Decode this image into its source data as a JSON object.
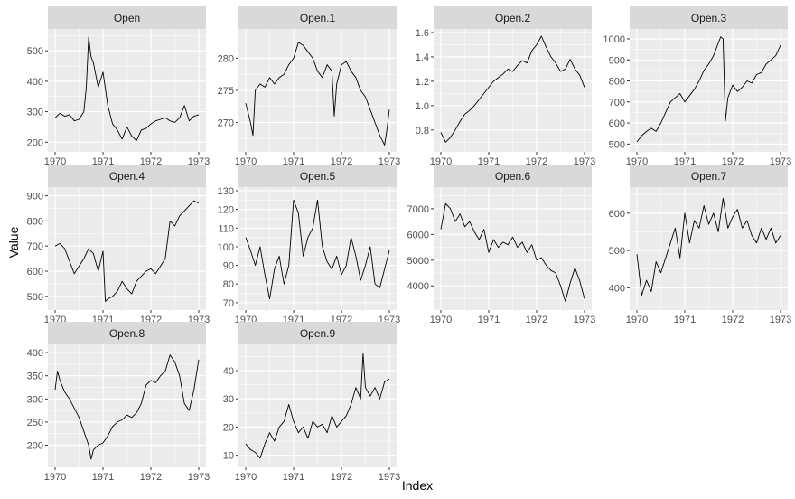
{
  "chart_data": {
    "type": "line",
    "layout": "facet-grid",
    "xlabel": "Index",
    "ylabel": "Value",
    "x_range": [
      1970,
      1973
    ],
    "x_ticks": [
      1970,
      1971,
      1972,
      1973
    ],
    "grid": true,
    "line_color": "#000000",
    "panel_background": "#ebebeb",
    "strip_background": "#d9d9d9",
    "panels": [
      {
        "title": "Open",
        "ylim": [
          180,
          560
        ],
        "y_ticks": [
          200,
          300,
          400,
          500
        ],
        "x": [
          1970.0,
          1970.1,
          1970.2,
          1970.3,
          1970.4,
          1970.5,
          1970.6,
          1970.65,
          1970.7,
          1970.75,
          1970.8,
          1970.9,
          1971.0,
          1971.1,
          1971.2,
          1971.3,
          1971.4,
          1971.5,
          1971.6,
          1971.7,
          1971.8,
          1971.9,
          1972.0,
          1972.1,
          1972.2,
          1972.3,
          1972.4,
          1972.5,
          1972.6,
          1972.7,
          1972.8,
          1972.9,
          1973.0
        ],
        "y": [
          280,
          295,
          285,
          290,
          270,
          275,
          300,
          380,
          545,
          480,
          460,
          380,
          430,
          320,
          260,
          240,
          210,
          250,
          220,
          205,
          240,
          245,
          260,
          270,
          275,
          280,
          270,
          265,
          280,
          320,
          270,
          285,
          290
        ]
      },
      {
        "title": "Open.1",
        "ylim": [
          266,
          284
        ],
        "y_ticks": [
          270,
          275,
          280
        ],
        "x": [
          1970.0,
          1970.1,
          1970.15,
          1970.2,
          1970.3,
          1970.4,
          1970.5,
          1970.6,
          1970.7,
          1970.8,
          1970.9,
          1971.0,
          1971.1,
          1971.2,
          1971.3,
          1971.4,
          1971.5,
          1971.6,
          1971.7,
          1971.8,
          1971.85,
          1971.9,
          1972.0,
          1972.1,
          1972.2,
          1972.3,
          1972.4,
          1972.5,
          1972.6,
          1972.7,
          1972.8,
          1972.9,
          1972.95,
          1973.0
        ],
        "y": [
          273,
          270,
          268,
          275,
          276,
          275.5,
          277,
          276,
          277,
          277.5,
          279,
          280,
          282.5,
          282,
          281,
          280,
          278,
          277,
          279,
          278,
          271,
          276,
          279,
          279.5,
          278,
          277,
          275,
          274,
          272,
          270,
          268,
          266.5,
          269,
          272
        ]
      },
      {
        "title": "Open.2",
        "ylim": [
          0.65,
          1.6
        ],
        "y_ticks": [
          0.8,
          1.0,
          1.2,
          1.4,
          1.6
        ],
        "y_tick_labels": [
          "0.8",
          "1.0",
          "1.2",
          "1.4",
          "1.6"
        ],
        "x": [
          1970.0,
          1970.1,
          1970.2,
          1970.3,
          1970.4,
          1970.5,
          1970.6,
          1970.7,
          1970.8,
          1970.9,
          1971.0,
          1971.1,
          1971.2,
          1971.3,
          1971.4,
          1971.5,
          1971.6,
          1971.7,
          1971.8,
          1971.9,
          1972.0,
          1972.1,
          1972.2,
          1972.3,
          1972.4,
          1972.5,
          1972.6,
          1972.7,
          1972.8,
          1972.9,
          1973.0
        ],
        "y": [
          0.78,
          0.7,
          0.74,
          0.8,
          0.87,
          0.93,
          0.96,
          1.0,
          1.05,
          1.1,
          1.15,
          1.2,
          1.23,
          1.26,
          1.3,
          1.28,
          1.33,
          1.37,
          1.35,
          1.45,
          1.5,
          1.57,
          1.48,
          1.4,
          1.35,
          1.28,
          1.3,
          1.38,
          1.3,
          1.25,
          1.15
        ]
      },
      {
        "title": "Open.3",
        "ylim": [
          480,
          1030
        ],
        "y_ticks": [
          500,
          600,
          700,
          800,
          900,
          1000
        ],
        "x": [
          1970.0,
          1970.1,
          1970.2,
          1970.3,
          1970.4,
          1970.5,
          1970.6,
          1970.7,
          1970.8,
          1970.9,
          1971.0,
          1971.1,
          1971.2,
          1971.3,
          1971.4,
          1971.5,
          1971.6,
          1971.7,
          1971.75,
          1971.8,
          1971.85,
          1971.9,
          1972.0,
          1972.1,
          1972.2,
          1972.3,
          1972.4,
          1972.5,
          1972.6,
          1972.7,
          1972.8,
          1972.9,
          1973.0
        ],
        "y": [
          510,
          540,
          560,
          575,
          560,
          600,
          650,
          700,
          720,
          740,
          700,
          730,
          760,
          800,
          850,
          880,
          920,
          980,
          1010,
          1000,
          610,
          720,
          780,
          750,
          770,
          800,
          790,
          830,
          840,
          880,
          900,
          920,
          970
        ]
      },
      {
        "title": "Open.4",
        "ylim": [
          460,
          920
        ],
        "y_ticks": [
          500,
          600,
          700,
          800,
          900
        ],
        "x": [
          1970.0,
          1970.1,
          1970.2,
          1970.3,
          1970.4,
          1970.5,
          1970.6,
          1970.7,
          1970.8,
          1970.9,
          1971.0,
          1971.05,
          1971.1,
          1971.2,
          1971.3,
          1971.4,
          1971.5,
          1971.6,
          1971.7,
          1971.8,
          1971.9,
          1972.0,
          1972.1,
          1972.2,
          1972.3,
          1972.4,
          1972.5,
          1972.6,
          1972.7,
          1972.8,
          1972.9,
          1973.0
        ],
        "y": [
          700,
          710,
          690,
          640,
          590,
          620,
          650,
          690,
          670,
          600,
          680,
          480,
          490,
          500,
          520,
          560,
          530,
          510,
          560,
          580,
          600,
          610,
          590,
          620,
          650,
          800,
          780,
          820,
          840,
          860,
          880,
          870
        ]
      },
      {
        "title": "Open.5",
        "ylim": [
          68,
          130
        ],
        "y_ticks": [
          70,
          80,
          90,
          100,
          110,
          120,
          130
        ],
        "x": [
          1970.0,
          1970.1,
          1970.2,
          1970.3,
          1970.4,
          1970.5,
          1970.6,
          1970.7,
          1970.8,
          1970.9,
          1971.0,
          1971.1,
          1971.2,
          1971.3,
          1971.4,
          1971.5,
          1971.6,
          1971.7,
          1971.8,
          1971.9,
          1972.0,
          1972.1,
          1972.2,
          1972.3,
          1972.4,
          1972.5,
          1972.6,
          1972.7,
          1972.8,
          1972.9,
          1973.0
        ],
        "y": [
          105,
          98,
          90,
          100,
          85,
          72,
          88,
          95,
          80,
          90,
          125,
          118,
          95,
          105,
          110,
          125,
          100,
          92,
          88,
          95,
          85,
          90,
          105,
          95,
          82,
          90,
          100,
          80,
          78,
          88,
          98
        ]
      },
      {
        "title": "Open.6",
        "ylim": [
          3200,
          7700
        ],
        "y_ticks": [
          4000,
          5000,
          6000,
          7000
        ],
        "x": [
          1970.0,
          1970.1,
          1970.2,
          1970.3,
          1970.4,
          1970.5,
          1970.6,
          1970.7,
          1970.8,
          1970.9,
          1971.0,
          1971.1,
          1971.2,
          1971.3,
          1971.4,
          1971.5,
          1971.6,
          1971.7,
          1971.8,
          1971.9,
          1972.0,
          1972.1,
          1972.2,
          1972.3,
          1972.4,
          1972.5,
          1972.6,
          1972.7,
          1972.8,
          1972.9,
          1973.0
        ],
        "y": [
          6200,
          7200,
          7000,
          6500,
          6800,
          6300,
          6500,
          6100,
          5800,
          6200,
          5300,
          5800,
          5500,
          5700,
          5600,
          5900,
          5500,
          5700,
          5300,
          5600,
          5000,
          5100,
          4800,
          4600,
          4500,
          4000,
          3400,
          4100,
          4700,
          4200,
          3500
        ]
      },
      {
        "title": "Open.7",
        "ylim": [
          350,
          660
        ],
        "y_ticks": [
          400,
          500,
          600
        ],
        "x": [
          1970.0,
          1970.1,
          1970.2,
          1970.3,
          1970.4,
          1970.5,
          1970.6,
          1970.7,
          1970.8,
          1970.9,
          1971.0,
          1971.1,
          1971.2,
          1971.3,
          1971.4,
          1971.5,
          1971.6,
          1971.7,
          1971.8,
          1971.9,
          1972.0,
          1972.1,
          1972.2,
          1972.3,
          1972.4,
          1972.5,
          1972.6,
          1972.7,
          1972.8,
          1972.9,
          1973.0
        ],
        "y": [
          490,
          380,
          420,
          390,
          470,
          440,
          480,
          520,
          560,
          480,
          600,
          520,
          580,
          560,
          620,
          570,
          600,
          550,
          640,
          560,
          590,
          610,
          560,
          580,
          540,
          520,
          560,
          530,
          560,
          520,
          540
        ]
      },
      {
        "title": "Open.8",
        "ylim": [
          160,
          410
        ],
        "y_ticks": [
          200,
          250,
          300,
          350,
          400
        ],
        "x": [
          1970.0,
          1970.05,
          1970.1,
          1970.2,
          1970.3,
          1970.4,
          1970.5,
          1970.6,
          1970.7,
          1970.75,
          1970.8,
          1970.9,
          1971.0,
          1971.1,
          1971.2,
          1971.3,
          1971.4,
          1971.5,
          1971.6,
          1971.7,
          1971.8,
          1971.9,
          1972.0,
          1972.1,
          1972.2,
          1972.3,
          1972.4,
          1972.5,
          1972.6,
          1972.7,
          1972.8,
          1972.9,
          1973.0
        ],
        "y": [
          320,
          360,
          340,
          315,
          300,
          280,
          260,
          230,
          200,
          170,
          190,
          200,
          205,
          220,
          240,
          250,
          255,
          265,
          260,
          270,
          290,
          330,
          340,
          335,
          350,
          360,
          395,
          380,
          350,
          290,
          275,
          320,
          385
        ]
      },
      {
        "title": "Open.9",
        "ylim": [
          7,
          48
        ],
        "y_ticks": [
          10,
          20,
          30,
          40
        ],
        "x": [
          1970.0,
          1970.1,
          1970.2,
          1970.3,
          1970.4,
          1970.5,
          1970.6,
          1970.7,
          1970.8,
          1970.9,
          1971.0,
          1971.1,
          1971.2,
          1971.3,
          1971.4,
          1971.5,
          1971.6,
          1971.7,
          1971.8,
          1971.9,
          1972.0,
          1972.1,
          1972.2,
          1972.3,
          1972.4,
          1972.45,
          1972.5,
          1972.6,
          1972.7,
          1972.8,
          1972.9,
          1973.0
        ],
        "y": [
          14,
          12,
          11,
          9,
          14,
          18,
          15,
          20,
          22,
          28,
          22,
          18,
          20,
          16,
          22,
          20,
          21,
          18,
          24,
          20,
          22,
          24,
          28,
          34,
          30,
          46,
          34,
          31,
          34,
          30,
          36,
          37
        ]
      }
    ]
  }
}
